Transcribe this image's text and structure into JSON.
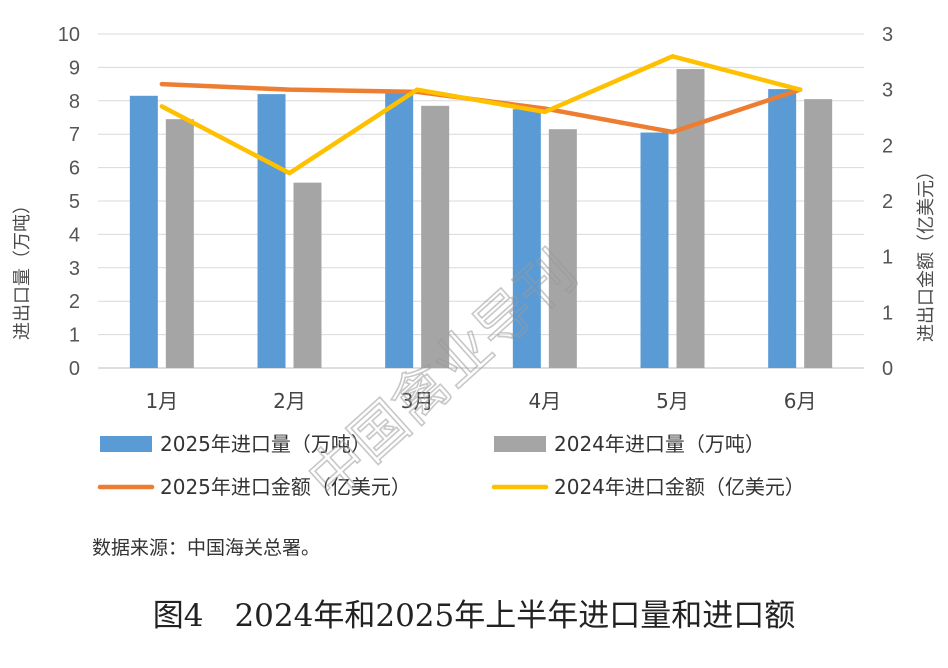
{
  "chart_data": {
    "type": "bar",
    "categories": [
      "1月",
      "2月",
      "3月",
      "4月",
      "5月",
      "6月"
    ],
    "ylabel_left": "进出口量（万吨）",
    "ylabel_right": "进出口金额（亿美元）",
    "ylim_left": [
      0,
      10
    ],
    "yticks_left": [
      "0",
      "1",
      "2",
      "3",
      "4",
      "5",
      "6",
      "7",
      "8",
      "9",
      "10"
    ],
    "ylim_right": [
      0,
      3
    ],
    "yticks_right": [
      "0",
      "1",
      "1",
      "2",
      "2",
      "3",
      "3"
    ],
    "grid": "horizontal",
    "legend_position": "bottom",
    "series": [
      {
        "name": "2025年进口量（万吨）",
        "type": "bar",
        "axis": "left",
        "color": "#5B9BD5",
        "values": [
          8.15,
          8.2,
          8.3,
          7.75,
          7.05,
          8.35
        ]
      },
      {
        "name": "2024年进口量（万吨）",
        "type": "bar",
        "axis": "left",
        "color": "#A5A5A5",
        "values": [
          7.45,
          5.55,
          7.85,
          7.15,
          8.95,
          8.05
        ]
      },
      {
        "name": "2025年进口金额（亿美元）",
        "type": "line",
        "axis": "right",
        "color": "#ED7D31",
        "values": [
          2.55,
          2.5,
          2.48,
          2.33,
          2.12,
          2.5
        ]
      },
      {
        "name": "2024年进口金额（亿美元）",
        "type": "line",
        "axis": "right",
        "color": "#FFC000",
        "values": [
          2.35,
          1.75,
          2.5,
          2.3,
          2.8,
          2.5
        ]
      }
    ]
  },
  "watermark": "中国禽业导刊",
  "source": "数据来源：中国海关总署。",
  "caption": "图4　2024年和2025年上半年进口量和进口额"
}
